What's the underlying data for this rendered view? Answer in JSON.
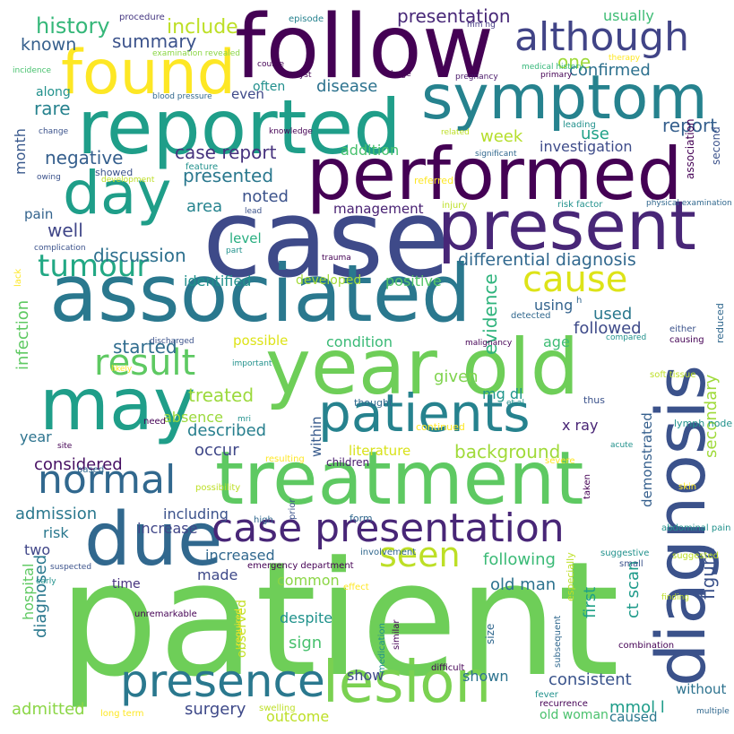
{
  "words": [
    {
      "text": "patient",
      "color": "#6ece58"
    },
    {
      "text": "case",
      "color": "#3e4a89"
    },
    {
      "text": "follow",
      "color": "#440154"
    },
    {
      "text": "reported",
      "color": "#1f9e89"
    },
    {
      "text": "symptom",
      "color": "#26828e"
    },
    {
      "text": "performed",
      "color": "#440154"
    },
    {
      "text": "present",
      "color": "#482677"
    },
    {
      "text": "associated",
      "color": "#2a788e"
    },
    {
      "text": "year old",
      "color": "#6ece58"
    },
    {
      "text": "may",
      "color": "#1f9e89"
    },
    {
      "text": "treatment",
      "color": "#5ec962"
    },
    {
      "text": "due",
      "color": "#31688e"
    },
    {
      "text": "diagnosis",
      "color": "#3b528b"
    },
    {
      "text": "found",
      "color": "#fde725"
    },
    {
      "text": "day",
      "color": "#1f9e89"
    },
    {
      "text": "lesion",
      "color": "#7ad151"
    },
    {
      "text": "presence",
      "color": "#2a788e"
    },
    {
      "text": "case presentation",
      "color": "#482677"
    },
    {
      "text": "patients",
      "color": "#26828e"
    },
    {
      "text": "although",
      "color": "#414487"
    },
    {
      "text": "tumour",
      "color": "#22a884"
    },
    {
      "text": "normal",
      "color": "#31688e"
    },
    {
      "text": "result",
      "color": "#5ec962"
    },
    {
      "text": "cause",
      "color": "#dde318"
    },
    {
      "text": "seen",
      "color": "#bddf26"
    },
    {
      "text": "history",
      "color": "#35b779"
    },
    {
      "text": "include",
      "color": "#bddf26"
    },
    {
      "text": "known",
      "color": "#355f8d"
    },
    {
      "text": "summary",
      "color": "#3b528b"
    },
    {
      "text": "presentation",
      "color": "#482878"
    },
    {
      "text": "one",
      "color": "#9fda3a"
    },
    {
      "text": "confirmed",
      "color": "#2d708e"
    },
    {
      "text": "usually",
      "color": "#3dbc74"
    },
    {
      "text": "disease",
      "color": "#2c728e"
    },
    {
      "text": "often",
      "color": "#218f8d"
    },
    {
      "text": "rare",
      "color": "#26828e"
    },
    {
      "text": "along",
      "color": "#21918c"
    },
    {
      "text": "even",
      "color": "#3e4989"
    },
    {
      "text": "report",
      "color": "#355f8d"
    },
    {
      "text": "use",
      "color": "#1fa187"
    },
    {
      "text": "week",
      "color": "#b5de2b"
    },
    {
      "text": "month",
      "color": "#38588c"
    },
    {
      "text": "addition",
      "color": "#48c16e"
    },
    {
      "text": "investigation",
      "color": "#3e4c8a"
    },
    {
      "text": "negative",
      "color": "#355f8d"
    },
    {
      "text": "case report",
      "color": "#46327e"
    },
    {
      "text": "presented",
      "color": "#2a788e"
    },
    {
      "text": "noted",
      "color": "#3b528b"
    },
    {
      "text": "management",
      "color": "#482173"
    },
    {
      "text": "area",
      "color": "#25838e"
    },
    {
      "text": "well",
      "color": "#404688"
    },
    {
      "text": "pain",
      "color": "#33638d"
    },
    {
      "text": "discussion",
      "color": "#2d708e"
    },
    {
      "text": "level",
      "color": "#28ae80"
    },
    {
      "text": "differential diagnosis",
      "color": "#31688e"
    },
    {
      "text": "identified",
      "color": "#21918c"
    },
    {
      "text": "developed",
      "color": "#a2da37"
    },
    {
      "text": "positive",
      "color": "#54c568"
    },
    {
      "text": "infection",
      "color": "#5ec962"
    },
    {
      "text": "evidence",
      "color": "#2eb37c"
    },
    {
      "text": "using",
      "color": "#33638d"
    },
    {
      "text": "used",
      "color": "#2a788e"
    },
    {
      "text": "followed",
      "color": "#3e4a89"
    },
    {
      "text": "started",
      "color": "#2f6c8e"
    },
    {
      "text": "possible",
      "color": "#dde318"
    },
    {
      "text": "condition",
      "color": "#3aba76"
    },
    {
      "text": "age",
      "color": "#3dbc74"
    },
    {
      "text": "treated",
      "color": "#9bd93c"
    },
    {
      "text": "given",
      "color": "#7fd34e"
    },
    {
      "text": "mg dl",
      "color": "#1f958b"
    },
    {
      "text": "absence",
      "color": "#9bd93c"
    },
    {
      "text": "described",
      "color": "#277f8e"
    },
    {
      "text": "year",
      "color": "#2c738e"
    },
    {
      "text": "occur",
      "color": "#3f4788"
    },
    {
      "text": "x ray",
      "color": "#482475"
    },
    {
      "text": "background",
      "color": "#a0da39"
    },
    {
      "text": "considered",
      "color": "#471063"
    },
    {
      "text": "literature",
      "color": "#d8e219"
    },
    {
      "text": "within",
      "color": "#375a8c"
    },
    {
      "text": "demonstrated",
      "color": "#355f8d"
    },
    {
      "text": "secondary",
      "color": "#9fda3a"
    },
    {
      "text": "figure",
      "color": "#3b528b"
    },
    {
      "text": "first",
      "color": "#1fa187"
    },
    {
      "text": "children",
      "color": "#481b6d"
    },
    {
      "text": "admission",
      "color": "#2a788e"
    },
    {
      "text": "including",
      "color": "#3b528b"
    },
    {
      "text": "increase",
      "color": "#404688"
    },
    {
      "text": "risk",
      "color": "#2a788e"
    },
    {
      "text": "two",
      "color": "#404688"
    },
    {
      "text": "increased",
      "color": "#31688e"
    },
    {
      "text": "made",
      "color": "#3e4989"
    },
    {
      "text": "following",
      "color": "#3aba76"
    },
    {
      "text": "old man",
      "color": "#2c728e"
    },
    {
      "text": "common",
      "color": "#8bd646"
    },
    {
      "text": "despite",
      "color": "#20928c"
    },
    {
      "text": "sign",
      "color": "#48c16e"
    },
    {
      "text": "diagnosed",
      "color": "#2a788e"
    },
    {
      "text": "hospital",
      "color": "#5ec962"
    },
    {
      "text": "time",
      "color": "#46337e"
    },
    {
      "text": "observed",
      "color": "#c2df23"
    },
    {
      "text": "shown",
      "color": "#2c728e"
    },
    {
      "text": "consistent",
      "color": "#3a548c"
    },
    {
      "text": "ct scan",
      "color": "#1e9b8a"
    },
    {
      "text": "mmol l",
      "color": "#1e9c89"
    },
    {
      "text": "without",
      "color": "#2c728e"
    },
    {
      "text": "show",
      "color": "#3e4a89"
    },
    {
      "text": "admitted",
      "color": "#8bd646"
    },
    {
      "text": "surgery",
      "color": "#3e4989"
    },
    {
      "text": "outcome",
      "color": "#bddf26"
    },
    {
      "text": "caused",
      "color": "#2a788e"
    },
    {
      "text": "old woman",
      "color": "#4ac16d"
    },
    {
      "text": "procedure",
      "color": "#453781"
    },
    {
      "text": "examination revealed",
      "color": "#8bd646"
    },
    {
      "text": "incidence",
      "color": "#48c16e"
    },
    {
      "text": "episode",
      "color": "#26828e"
    },
    {
      "text": "mm hg",
      "color": "#443983"
    },
    {
      "text": "course",
      "color": "#440154"
    },
    {
      "text": "cyst",
      "color": "#440154"
    },
    {
      "text": "large",
      "color": "#440154"
    },
    {
      "text": "pregnancy",
      "color": "#481769"
    },
    {
      "text": "medical history",
      "color": "#35b779"
    },
    {
      "text": "therapy",
      "color": "#fde725"
    },
    {
      "text": "primary",
      "color": "#440154"
    },
    {
      "text": "second",
      "color": "#3b528b"
    },
    {
      "text": "blood pressure",
      "color": "#31688e"
    },
    {
      "text": "knowledge",
      "color": "#440154"
    },
    {
      "text": "related",
      "color": "#bddf26"
    },
    {
      "text": "leading",
      "color": "#21918c"
    },
    {
      "text": "significant",
      "color": "#31688e"
    },
    {
      "text": "association",
      "color": "#440154"
    },
    {
      "text": "change",
      "color": "#3b528b"
    },
    {
      "text": "showed",
      "color": "#3b528b"
    },
    {
      "text": "development",
      "color": "#bddf26"
    },
    {
      "text": "owing",
      "color": "#3b528b"
    },
    {
      "text": "feature",
      "color": "#21918c"
    },
    {
      "text": "referred",
      "color": "#fde725"
    },
    {
      "text": "lead",
      "color": "#3b528b"
    },
    {
      "text": "injury",
      "color": "#bddf26"
    },
    {
      "text": "risk factor",
      "color": "#21918c"
    },
    {
      "text": "physical examination",
      "color": "#31688e"
    },
    {
      "text": "lack",
      "color": "#fde725"
    },
    {
      "text": "complication",
      "color": "#3b528b"
    },
    {
      "text": "part",
      "color": "#21918c"
    },
    {
      "text": "trauma",
      "color": "#440154"
    },
    {
      "text": "h",
      "color": "#31688e"
    },
    {
      "text": "detected",
      "color": "#31688e"
    },
    {
      "text": "either",
      "color": "#3b528b"
    },
    {
      "text": "discharged",
      "color": "#3b528b"
    },
    {
      "text": "malignancy",
      "color": "#440154"
    },
    {
      "text": "compared",
      "color": "#21918c"
    },
    {
      "text": "causing",
      "color": "#440154"
    },
    {
      "text": "reduced",
      "color": "#31688e"
    },
    {
      "text": "important",
      "color": "#21918c"
    },
    {
      "text": "likely",
      "color": "#fde725"
    },
    {
      "text": "soft tissue",
      "color": "#bddf26"
    },
    {
      "text": "thought",
      "color": "#31688e"
    },
    {
      "text": "et al",
      "color": "#21918c"
    },
    {
      "text": "thus",
      "color": "#3b528b"
    },
    {
      "text": "lymph node",
      "color": "#21918c"
    },
    {
      "text": "mri",
      "color": "#21918c"
    },
    {
      "text": "continued",
      "color": "#fde725"
    },
    {
      "text": "need",
      "color": "#440154"
    },
    {
      "text": "acute",
      "color": "#21918c"
    },
    {
      "text": "site",
      "color": "#440154"
    },
    {
      "text": "resulting",
      "color": "#fde725"
    },
    {
      "text": "based",
      "color": "#31688e"
    },
    {
      "text": "severe",
      "color": "#fde725"
    },
    {
      "text": "possibility",
      "color": "#bddf26"
    },
    {
      "text": "prior",
      "color": "#3b528b"
    },
    {
      "text": "taken",
      "color": "#440154"
    },
    {
      "text": "skin",
      "color": "#fde725"
    },
    {
      "text": "high",
      "color": "#31688e"
    },
    {
      "text": "form",
      "color": "#31688e"
    },
    {
      "text": "abdominal pain",
      "color": "#21918c"
    },
    {
      "text": "involvement",
      "color": "#31688e"
    },
    {
      "text": "emergency department",
      "color": "#440154"
    },
    {
      "text": "suggestive",
      "color": "#21918c"
    },
    {
      "text": "suggested",
      "color": "#bddf26"
    },
    {
      "text": "suspected",
      "color": "#3b528b"
    },
    {
      "text": "early",
      "color": "#21918c"
    },
    {
      "text": "effect",
      "color": "#fde725"
    },
    {
      "text": "size",
      "color": "#31688e"
    },
    {
      "text": "especially",
      "color": "#bddf26"
    },
    {
      "text": "small",
      "color": "#3b528b"
    },
    {
      "text": "finding",
      "color": "#bddf26"
    },
    {
      "text": "unremarkable",
      "color": "#440154"
    },
    {
      "text": "required",
      "color": "#fde725"
    },
    {
      "text": "similar",
      "color": "#440154"
    },
    {
      "text": "medication",
      "color": "#21918c"
    },
    {
      "text": "subsequent",
      "color": "#31688e"
    },
    {
      "text": "combination",
      "color": "#440154"
    },
    {
      "text": "difficult",
      "color": "#440154"
    },
    {
      "text": "fever",
      "color": "#21918c"
    },
    {
      "text": "recurrence",
      "color": "#440154"
    },
    {
      "text": "swelling",
      "color": "#bddf26"
    },
    {
      "text": "long term",
      "color": "#fde725"
    },
    {
      "text": "multiple",
      "color": "#31688e"
    },
    {
      "text": "abdomen",
      "color": "#31688e"
    }
  ]
}
